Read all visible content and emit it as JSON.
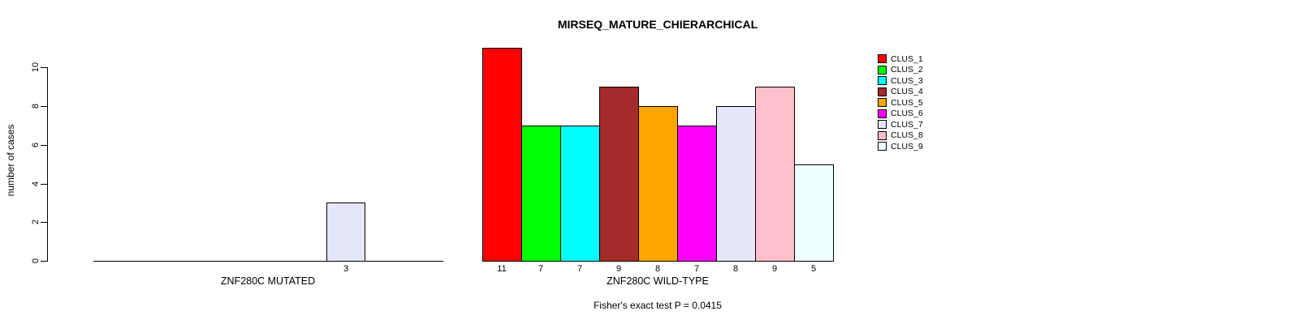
{
  "title": "MIRSEQ_MATURE_CHIERARCHICAL",
  "ylabel": "number of cases",
  "annotation": "Fisher's exact test P = 0.0415",
  "legend": {
    "entries": [
      {
        "label": "CLUS_1",
        "color": "#FF0000"
      },
      {
        "label": "CLUS_2",
        "color": "#00FF00"
      },
      {
        "label": "CLUS_3",
        "color": "#00FFFF"
      },
      {
        "label": "CLUS_4",
        "color": "#A52A2A"
      },
      {
        "label": "CLUS_5",
        "color": "#FFA500"
      },
      {
        "label": "CLUS_6",
        "color": "#FF00FF"
      },
      {
        "label": "CLUS_7",
        "color": "#E6E6FA"
      },
      {
        "label": "CLUS_8",
        "color": "#FFC0CB"
      },
      {
        "label": "CLUS_9",
        "color": "#F0FFFF"
      }
    ]
  },
  "chart_data": [
    {
      "type": "bar",
      "group": "ZNF280C MUTATED",
      "xlabel": "ZNF280C MUTATED",
      "ylabel": "number of cases",
      "categories": [
        "CLUS_1",
        "CLUS_2",
        "CLUS_3",
        "CLUS_4",
        "CLUS_5",
        "CLUS_6",
        "CLUS_7",
        "CLUS_8",
        "CLUS_9"
      ],
      "values": [
        0,
        0,
        0,
        0,
        0,
        0,
        3,
        0,
        0
      ],
      "bar_colors": [
        "#FF0000",
        "#00FF00",
        "#00FFFF",
        "#A52A2A",
        "#FFA500",
        "#FF00FF",
        "#E6E6FA",
        "#FFC0CB",
        "#F0FFFF"
      ],
      "ylim": [
        0,
        10
      ],
      "yticks": [
        0,
        2,
        4,
        6,
        8,
        10
      ],
      "grid": false,
      "legend_position": "right"
    },
    {
      "type": "bar",
      "group": "ZNF280C WILD-TYPE",
      "xlabel": "ZNF280C WILD-TYPE",
      "categories": [
        "CLUS_1",
        "CLUS_2",
        "CLUS_3",
        "CLUS_4",
        "CLUS_5",
        "CLUS_6",
        "CLUS_7",
        "CLUS_8",
        "CLUS_9"
      ],
      "values": [
        11,
        7,
        7,
        9,
        8,
        7,
        8,
        9,
        5
      ],
      "bar_colors": [
        "#FF0000",
        "#00FF00",
        "#00FFFF",
        "#A52A2A",
        "#FFA500",
        "#FF00FF",
        "#E6E6FA",
        "#FFC0CB",
        "#F0FFFF"
      ],
      "ylim": [
        0,
        10
      ],
      "grid": false
    }
  ]
}
